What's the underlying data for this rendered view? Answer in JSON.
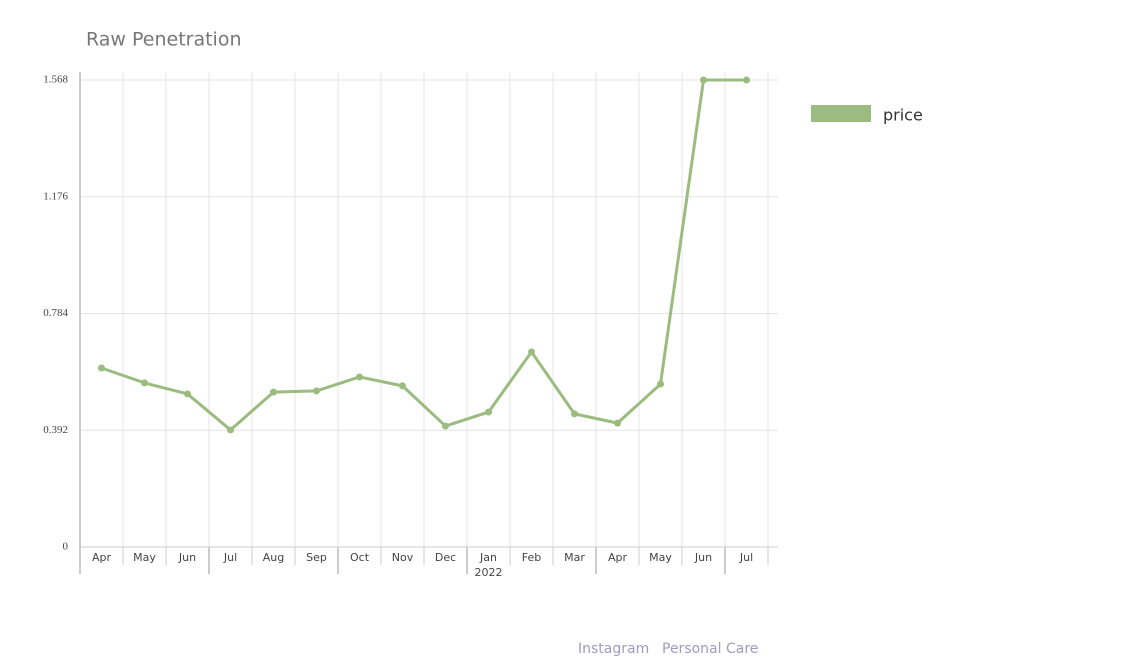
{
  "chart_data": {
    "type": "line",
    "title": "Raw Penetration",
    "categories": [
      "Apr",
      "May",
      "Jun",
      "Jul",
      "Aug",
      "Sep",
      "Oct",
      "Nov",
      "Dec",
      "Jan",
      "Feb",
      "Mar",
      "Apr",
      "May",
      "Jun",
      "Jul"
    ],
    "secondary_labels": [
      null,
      null,
      null,
      null,
      null,
      null,
      null,
      null,
      null,
      "2022",
      null,
      null,
      null,
      null,
      null,
      null
    ],
    "series": [
      {
        "name": "price",
        "color": "#9bbb7f",
        "values": [
          0.601,
          0.551,
          0.514,
          0.393,
          0.52,
          0.524,
          0.571,
          0.541,
          0.406,
          0.453,
          0.655,
          0.447,
          0.416,
          0.547,
          1.568,
          1.568
        ]
      }
    ],
    "ylim": [
      0,
      1.568
    ],
    "yticks": [
      0,
      0.392,
      0.784,
      1.176,
      1.568
    ],
    "grid": true,
    "legend": "right"
  },
  "footer": [
    "Instagram",
    "Personal Care"
  ]
}
